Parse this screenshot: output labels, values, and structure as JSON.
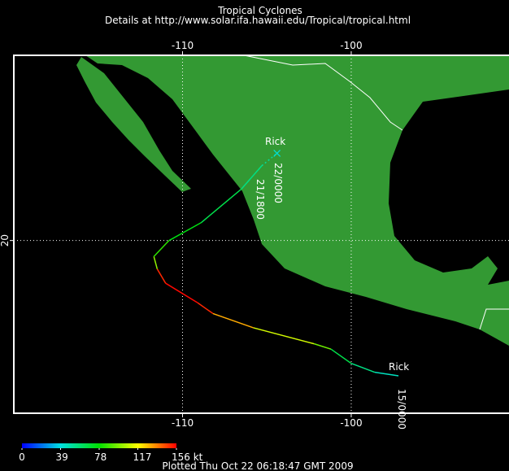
{
  "header": {
    "title": "Tropical Cyclones",
    "subtitle": "Details at http://www.solar.ifa.hawaii.edu/Tropical/tropical.html"
  },
  "map": {
    "lonlim": [
      -120,
      -90.6
    ],
    "latlim": [
      10.3,
      30.4
    ],
    "lon_ticks": [
      -110,
      -100
    ],
    "lat_ticks": [
      20
    ],
    "grid": true,
    "land_color": "#339933",
    "ocean_color": "#000000"
  },
  "track": {
    "lon": [
      -97.2,
      -98.6,
      -100.0,
      -101.2,
      -102.2,
      -105.8,
      -108.2,
      -109.1,
      -111.0,
      -111.5,
      -111.7,
      -110.8,
      -108.9,
      -106.5,
      -105.3,
      -104.4
    ],
    "lat": [
      12.4,
      12.6,
      13.1,
      13.9,
      14.2,
      15.1,
      15.9,
      16.5,
      17.6,
      18.4,
      19.1,
      20.0,
      21.0,
      22.9,
      24.2,
      24.9
    ],
    "kt": [
      45,
      55,
      65,
      95,
      110,
      130,
      150,
      155,
      150,
      100,
      85,
      75,
      65,
      55,
      50,
      40
    ],
    "name_labels": [
      "Rick",
      "Rick"
    ],
    "time_labels": [
      "15/0000",
      "21/1800",
      "22/0000"
    ]
  },
  "colorbar": {
    "lim": [
      0,
      156
    ],
    "ticks": [
      0,
      39,
      78,
      117,
      {
        "value": 156,
        "label": "156 kt"
      }
    ]
  },
  "footer": "Plotted Thu Oct 22 06:18:47 GMT 2009"
}
